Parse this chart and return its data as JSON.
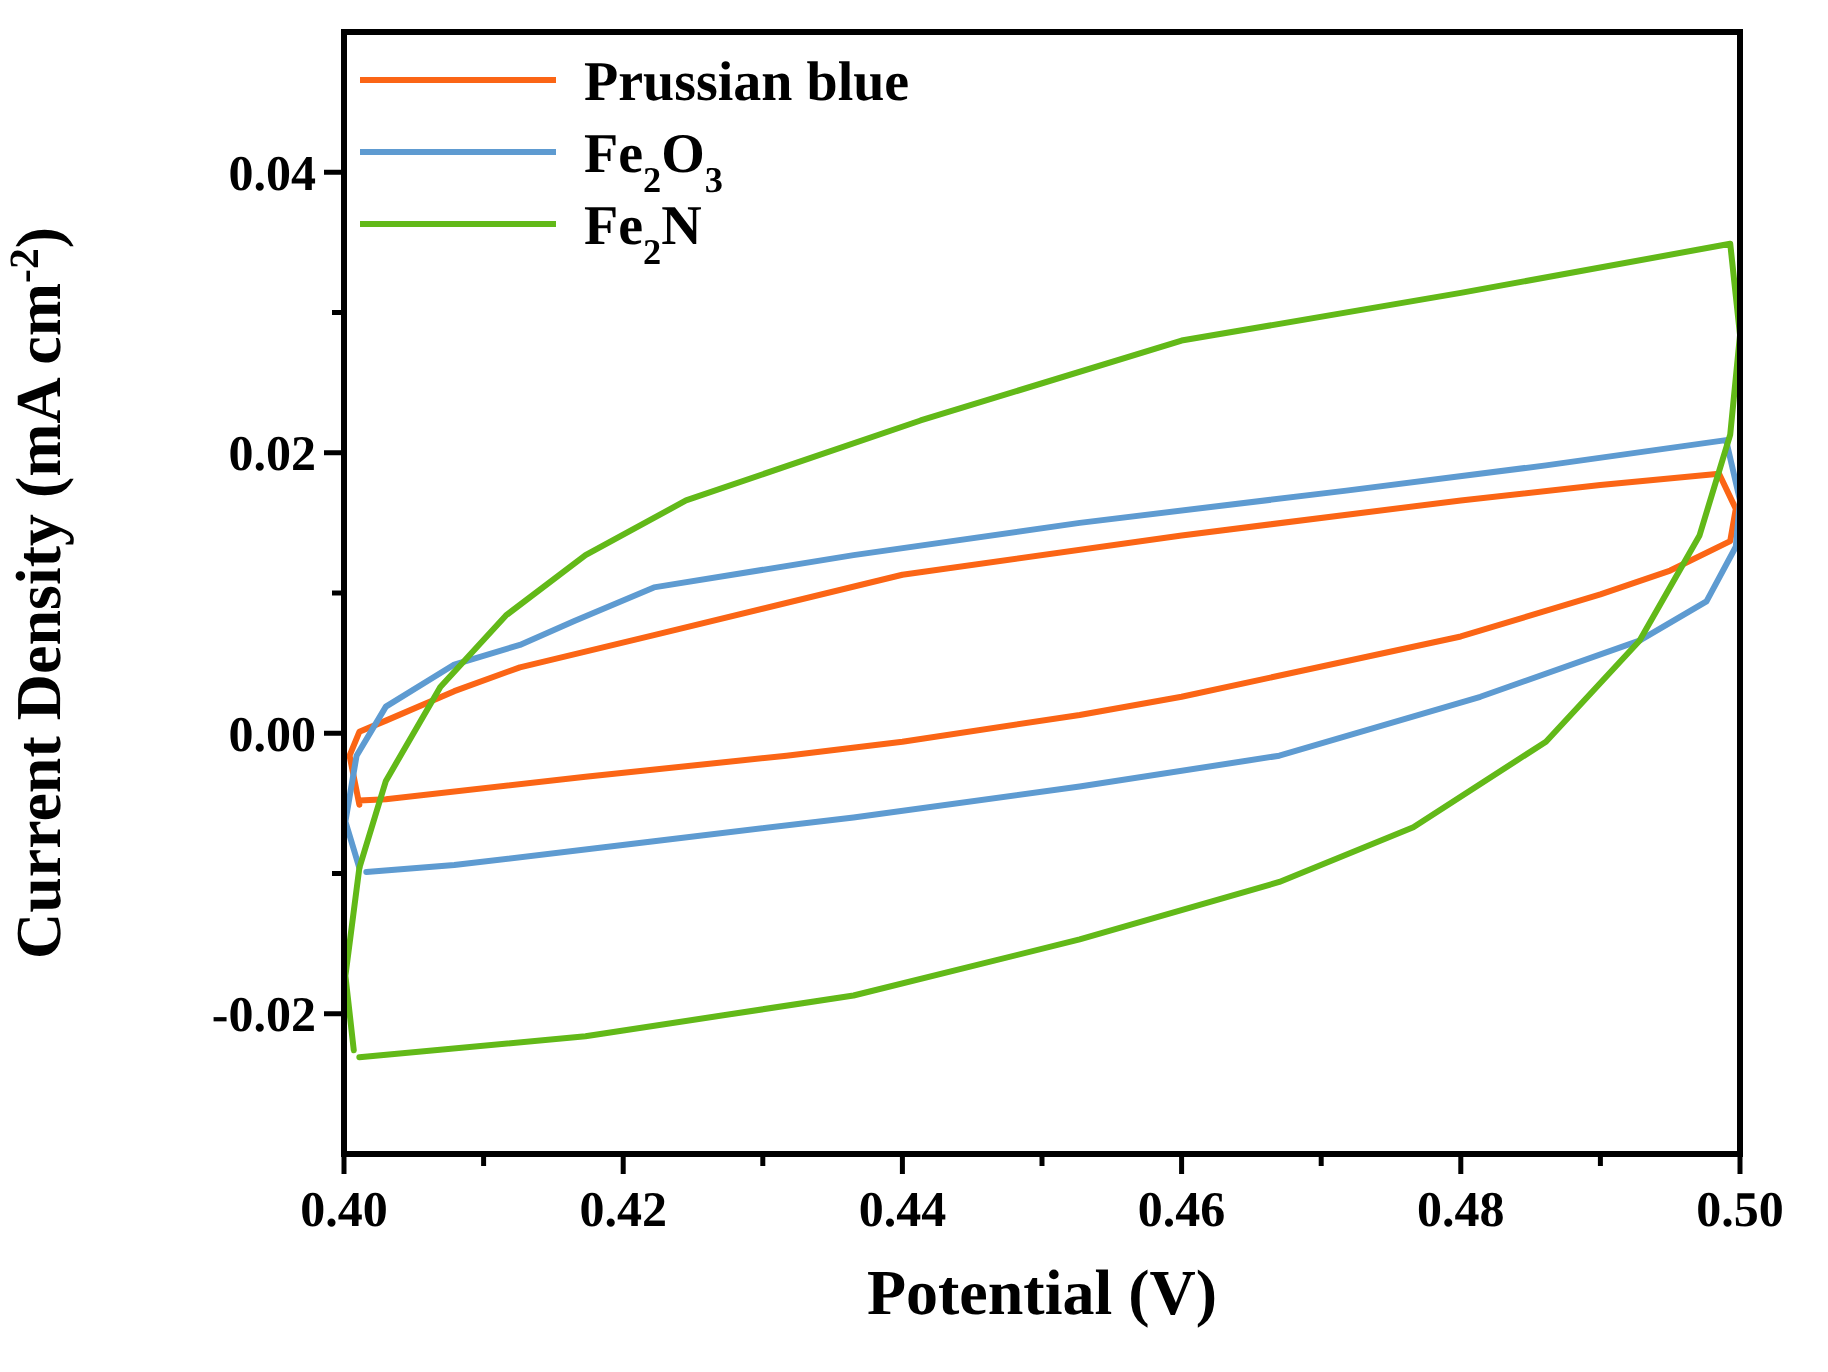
{
  "chart_data": {
    "type": "line",
    "xlabel": "Potential (V)",
    "ylabel": "Current Density (mA cm$^{-2}$)",
    "legend": "top left",
    "line_style": "solid",
    "xlim": [
      0.4,
      0.5
    ],
    "ylim": [
      -0.03,
      0.05
    ],
    "xticks": [
      {
        "value": 0.4,
        "label": "0.40"
      },
      {
        "value": 0.41,
        "label": null
      },
      {
        "value": 0.42,
        "label": "0.42"
      },
      {
        "value": 0.43,
        "label": null
      },
      {
        "value": 0.44,
        "label": "0.44"
      },
      {
        "value": 0.45,
        "label": null
      },
      {
        "value": 0.46,
        "label": "0.46"
      },
      {
        "value": 0.47,
        "label": null
      },
      {
        "value": 0.48,
        "label": "0.48"
      },
      {
        "value": 0.49,
        "label": null
      },
      {
        "value": 0.5,
        "label": "0.50"
      }
    ],
    "yticks": [
      {
        "value": -0.02,
        "label": "-0.02"
      },
      {
        "value": -0.01,
        "label": null
      },
      {
        "value": 0,
        "label": "0.00"
      },
      {
        "value": 0.01,
        "label": null
      },
      {
        "value": 0.02,
        "label": "0.02"
      },
      {
        "value": 0.03,
        "label": null
      },
      {
        "value": 0.04,
        "label": "0.04"
      }
    ],
    "series": [
      {
        "name": "Prussian blue",
        "color": "#fb6515",
        "x": [
          0.4011,
          0.403,
          0.4173,
          0.4317,
          0.44,
          0.4527,
          0.46,
          0.48,
          0.49,
          0.495,
          0.4993,
          0.4997,
          0.4985,
          0.49,
          0.48,
          0.46,
          0.44,
          0.4222,
          0.4126,
          0.4079,
          0.403,
          0.4011,
          0.4004,
          0.4011
        ],
        "values": [
          -0.0048,
          -0.0047,
          -0.0031,
          -0.0016,
          -0.0006,
          0.0013,
          0.0026,
          0.0069,
          0.0099,
          0.0116,
          0.0137,
          0.016,
          0.0185,
          0.0177,
          0.0166,
          0.0141,
          0.0113,
          0.007,
          0.0047,
          0.003,
          0.0009,
          0.0001,
          -0.0016,
          -0.0051
        ]
      },
      {
        "name": "Fe$_{2}$O$_{3}$",
        "color": "#5e9bd1",
        "x": [
          0.4016,
          0.4079,
          0.4222,
          0.4365,
          0.4527,
          0.467,
          0.4814,
          0.4928,
          0.4976,
          0.4997,
          0.5,
          0.499,
          0.4861,
          0.4718,
          0.4527,
          0.4365,
          0.4222,
          0.4165,
          0.4126,
          0.4079,
          0.403,
          0.4009,
          0.4001,
          0.4011
        ],
        "values": [
          -0.0099,
          -0.0094,
          -0.0077,
          -0.006,
          -0.0038,
          -0.0016,
          0.0026,
          0.0066,
          0.0094,
          0.0133,
          0.0166,
          0.0209,
          0.0191,
          0.0173,
          0.015,
          0.0127,
          0.0104,
          0.008,
          0.0063,
          0.0049,
          0.0019,
          -0.0016,
          -0.0063,
          -0.0096
        ]
      },
      {
        "name": "Fe$_{2}$N",
        "color": "#62b918",
        "x": [
          0.4011,
          0.4173,
          0.4365,
          0.4527,
          0.467,
          0.4766,
          0.4861,
          0.4928,
          0.4971,
          0.4993,
          0.5,
          0.4993,
          0.48,
          0.46,
          0.4413,
          0.4245,
          0.4173,
          0.4116,
          0.4069,
          0.403,
          0.4011,
          0.4001,
          0.4007
        ],
        "values": [
          -0.0231,
          -0.0216,
          -0.0187,
          -0.0147,
          -0.0106,
          -0.0067,
          -0.0006,
          0.0066,
          0.0141,
          0.0213,
          0.0284,
          0.0349,
          0.0314,
          0.028,
          0.0223,
          0.0166,
          0.0127,
          0.0084,
          0.0033,
          -0.0034,
          -0.0096,
          -0.0173,
          -0.0226
        ]
      }
    ]
  }
}
